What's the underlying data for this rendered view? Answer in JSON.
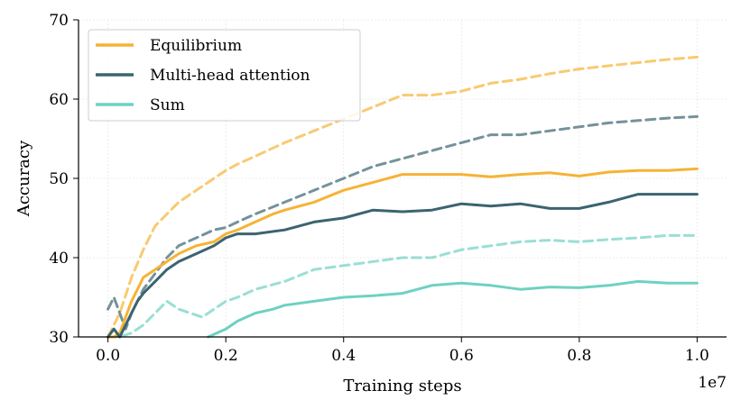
{
  "chart_data": {
    "type": "line",
    "xlabel": "Training steps",
    "ylabel": "Accuracy",
    "x_offset_label": "1e7",
    "xlim": [
      -0.05,
      1.05
    ],
    "ylim": [
      30,
      70
    ],
    "xticks": [
      0.0,
      0.2,
      0.4,
      0.6,
      0.8,
      1.0
    ],
    "xtick_labels": [
      "0.0",
      "0.2",
      "0.4",
      "0.6",
      "0.8",
      "1.0"
    ],
    "yticks": [
      30,
      40,
      50,
      60,
      70
    ],
    "ytick_labels": [
      "30",
      "40",
      "50",
      "60",
      "70"
    ],
    "grid": true,
    "legend_position": "top-left",
    "legend": [
      {
        "name": "Equilibrium",
        "color": "#F5B335"
      },
      {
        "name": "Multi-head attention",
        "color": "#3B6470"
      },
      {
        "name": "Sum",
        "color": "#6ED1C2"
      }
    ],
    "series": [
      {
        "name": "Equilibrium",
        "variant": "dashed",
        "color": "#F5B335",
        "x": [
          0.0,
          0.02,
          0.04,
          0.06,
          0.08,
          0.1,
          0.12,
          0.14,
          0.16,
          0.18,
          0.2,
          0.22,
          0.25,
          0.3,
          0.35,
          0.4,
          0.45,
          0.5,
          0.55,
          0.6,
          0.65,
          0.7,
          0.75,
          0.8,
          0.85,
          0.9,
          0.95,
          1.0
        ],
        "values": [
          30.0,
          33.0,
          37.5,
          41.0,
          44.0,
          45.5,
          47.0,
          48.0,
          49.0,
          50.0,
          51.0,
          51.8,
          52.8,
          54.5,
          56.0,
          57.5,
          59.0,
          60.5,
          60.5,
          61.0,
          62.0,
          62.5,
          63.2,
          63.8,
          64.2,
          64.6,
          65.0,
          65.3
        ]
      },
      {
        "name": "Multi-head attention",
        "variant": "dashed",
        "color": "#3B6470",
        "x": [
          0.0,
          0.01,
          0.02,
          0.03,
          0.04,
          0.06,
          0.08,
          0.1,
          0.12,
          0.15,
          0.18,
          0.2,
          0.22,
          0.25,
          0.3,
          0.35,
          0.4,
          0.45,
          0.5,
          0.55,
          0.6,
          0.65,
          0.7,
          0.75,
          0.8,
          0.85,
          0.9,
          0.95,
          1.0
        ],
        "values": [
          33.5,
          35.0,
          33.0,
          31.0,
          33.0,
          36.0,
          38.0,
          40.0,
          41.5,
          42.5,
          43.5,
          43.8,
          44.5,
          45.5,
          47.0,
          48.5,
          50.0,
          51.5,
          52.5,
          53.5,
          54.5,
          55.5,
          55.5,
          56.0,
          56.5,
          57.0,
          57.3,
          57.6,
          57.8
        ]
      },
      {
        "name": "Sum",
        "variant": "dashed",
        "color": "#6ED1C2",
        "x": [
          0.0,
          0.02,
          0.04,
          0.06,
          0.08,
          0.1,
          0.12,
          0.14,
          0.16,
          0.18,
          0.2,
          0.22,
          0.25,
          0.3,
          0.35,
          0.4,
          0.45,
          0.5,
          0.55,
          0.6,
          0.65,
          0.7,
          0.75,
          0.8,
          0.85,
          0.9,
          0.95,
          1.0
        ],
        "values": [
          30.0,
          30.0,
          30.5,
          31.5,
          33.0,
          34.5,
          33.5,
          33.0,
          32.5,
          33.5,
          34.5,
          35.0,
          36.0,
          37.0,
          38.5,
          39.0,
          39.5,
          40.0,
          40.0,
          41.0,
          41.5,
          42.0,
          42.2,
          42.0,
          42.3,
          42.5,
          42.8,
          42.8
        ]
      },
      {
        "name": "Equilibrium",
        "variant": "solid",
        "color": "#F5B335",
        "x": [
          0.0,
          0.01,
          0.02,
          0.03,
          0.04,
          0.05,
          0.06,
          0.08,
          0.1,
          0.12,
          0.15,
          0.18,
          0.2,
          0.22,
          0.25,
          0.28,
          0.3,
          0.35,
          0.4,
          0.45,
          0.5,
          0.55,
          0.6,
          0.65,
          0.7,
          0.75,
          0.8,
          0.85,
          0.9,
          0.95,
          1.0
        ],
        "values": [
          30.0,
          29.0,
          30.5,
          32.5,
          34.5,
          36.0,
          37.5,
          38.5,
          39.5,
          40.5,
          41.5,
          42.0,
          43.0,
          43.5,
          44.5,
          45.5,
          46.0,
          47.0,
          48.5,
          49.5,
          50.5,
          50.5,
          50.5,
          50.2,
          50.5,
          50.7,
          50.3,
          50.8,
          51.0,
          51.0,
          51.2
        ]
      },
      {
        "name": "Multi-head attention",
        "variant": "solid",
        "color": "#3B6470",
        "x": [
          0.0,
          0.01,
          0.02,
          0.03,
          0.04,
          0.05,
          0.06,
          0.08,
          0.1,
          0.12,
          0.15,
          0.18,
          0.2,
          0.22,
          0.25,
          0.3,
          0.35,
          0.4,
          0.45,
          0.5,
          0.55,
          0.6,
          0.65,
          0.7,
          0.75,
          0.8,
          0.85,
          0.9,
          0.95,
          1.0
        ],
        "values": [
          30.0,
          31.0,
          30.0,
          31.5,
          33.0,
          34.5,
          35.5,
          37.0,
          38.5,
          39.5,
          40.5,
          41.5,
          42.5,
          43.0,
          43.0,
          43.5,
          44.5,
          45.0,
          46.0,
          45.8,
          46.0,
          46.8,
          46.5,
          46.8,
          46.2,
          46.2,
          47.0,
          48.0,
          48.0,
          48.0
        ]
      },
      {
        "name": "Sum",
        "variant": "solid",
        "color": "#6ED1C2",
        "x": [
          0.17,
          0.2,
          0.22,
          0.25,
          0.28,
          0.3,
          0.35,
          0.4,
          0.45,
          0.5,
          0.55,
          0.6,
          0.65,
          0.7,
          0.75,
          0.8,
          0.85,
          0.9,
          0.95,
          1.0
        ],
        "values": [
          30.0,
          31.0,
          32.0,
          33.0,
          33.5,
          34.0,
          34.5,
          35.0,
          35.2,
          35.5,
          36.5,
          36.8,
          36.5,
          36.0,
          36.3,
          36.2,
          36.5,
          37.0,
          36.8,
          36.8
        ]
      }
    ]
  }
}
